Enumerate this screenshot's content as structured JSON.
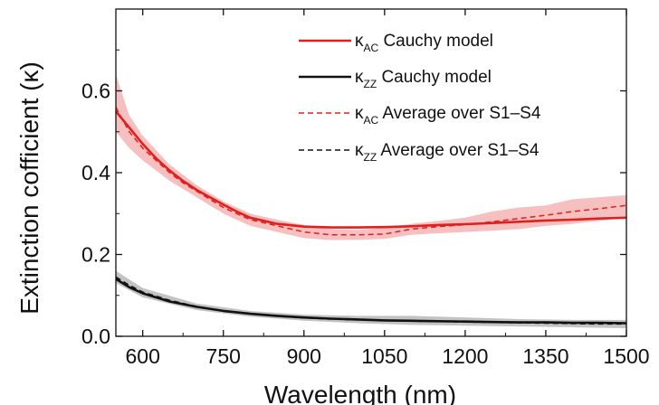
{
  "chart_data": {
    "type": "line",
    "xlabel": "Wavelength (nm)",
    "ylabel": "Extinction cofficient (κ)",
    "xlim": [
      550,
      1500
    ],
    "ylim": [
      0,
      0.8
    ],
    "x_ticks": [
      600,
      750,
      900,
      1050,
      1200,
      1350,
      1500
    ],
    "y_ticks": [
      0.0,
      0.2,
      0.4,
      0.6
    ],
    "x_tick_labels": [
      "600",
      "750",
      "900",
      "1050",
      "1200",
      "1350",
      "1500"
    ],
    "y_tick_labels": [
      "0.0",
      "0.2",
      "0.4",
      "0.6"
    ],
    "grid": false,
    "legend_position": "top-right",
    "colors": {
      "red": "#e0201f",
      "black": "#111111",
      "red_band": "#f4a5a5",
      "black_band": "#aaaaaa"
    },
    "series": [
      {
        "name_symbol": "κ",
        "name_sub": "AC",
        "name_text": " Cauchy model",
        "style": "solid",
        "color": "#e0201f",
        "x": [
          550,
          575,
          600,
          625,
          650,
          675,
          700,
          725,
          750,
          775,
          800,
          850,
          900,
          950,
          1000,
          1050,
          1100,
          1150,
          1200,
          1250,
          1300,
          1350,
          1400,
          1450,
          1500
        ],
        "y": [
          0.55,
          0.51,
          0.47,
          0.435,
          0.405,
          0.38,
          0.358,
          0.34,
          0.322,
          0.305,
          0.29,
          0.275,
          0.268,
          0.266,
          0.266,
          0.267,
          0.269,
          0.272,
          0.274,
          0.277,
          0.28,
          0.283,
          0.285,
          0.288,
          0.29
        ]
      },
      {
        "name_symbol": "κ",
        "name_sub": "ZZ",
        "name_text": " Cauchy model",
        "style": "solid",
        "color": "#111111",
        "x": [
          550,
          575,
          600,
          650,
          700,
          750,
          800,
          850,
          900,
          950,
          1000,
          1050,
          1100,
          1150,
          1200,
          1250,
          1300,
          1350,
          1400,
          1450,
          1500
        ],
        "y": [
          0.14,
          0.12,
          0.105,
          0.085,
          0.072,
          0.062,
          0.055,
          0.05,
          0.046,
          0.043,
          0.041,
          0.039,
          0.038,
          0.037,
          0.036,
          0.035,
          0.034,
          0.034,
          0.033,
          0.033,
          0.032
        ]
      },
      {
        "name_symbol": "κ",
        "name_sub": "AC",
        "name_text": " Average over S1–S4",
        "style": "dashed",
        "color": "#e0201f",
        "x": [
          550,
          575,
          600,
          625,
          650,
          675,
          700,
          725,
          750,
          775,
          800,
          850,
          900,
          950,
          1000,
          1050,
          1100,
          1150,
          1200,
          1250,
          1300,
          1350,
          1400,
          1450,
          1500
        ],
        "y": [
          0.56,
          0.5,
          0.46,
          0.43,
          0.4,
          0.375,
          0.355,
          0.335,
          0.315,
          0.3,
          0.285,
          0.27,
          0.255,
          0.248,
          0.248,
          0.25,
          0.262,
          0.268,
          0.273,
          0.28,
          0.288,
          0.296,
          0.305,
          0.312,
          0.32
        ]
      },
      {
        "name_symbol": "κ",
        "name_sub": "ZZ",
        "name_text": " Average over S1–S4",
        "style": "dashed",
        "color": "#111111",
        "x": [
          550,
          575,
          600,
          650,
          700,
          750,
          800,
          850,
          900,
          950,
          1000,
          1050,
          1100,
          1150,
          1200,
          1250,
          1300,
          1350,
          1400,
          1450,
          1500
        ],
        "y": [
          0.145,
          0.125,
          0.108,
          0.088,
          0.073,
          0.062,
          0.055,
          0.049,
          0.045,
          0.042,
          0.04,
          0.039,
          0.037,
          0.036,
          0.035,
          0.034,
          0.033,
          0.032,
          0.031,
          0.03,
          0.03
        ]
      }
    ],
    "bands": [
      {
        "color": "#f4a5a5",
        "x": [
          550,
          575,
          600,
          650,
          700,
          750,
          800,
          850,
          900,
          950,
          1000,
          1050,
          1100,
          1150,
          1200,
          1250,
          1300,
          1350,
          1400,
          1450,
          1500
        ],
        "upper": [
          0.64,
          0.54,
          0.49,
          0.42,
          0.37,
          0.33,
          0.3,
          0.285,
          0.272,
          0.262,
          0.26,
          0.265,
          0.275,
          0.282,
          0.29,
          0.305,
          0.315,
          0.32,
          0.335,
          0.34,
          0.345
        ],
        "lower": [
          0.5,
          0.46,
          0.43,
          0.38,
          0.34,
          0.3,
          0.27,
          0.255,
          0.24,
          0.235,
          0.236,
          0.238,
          0.248,
          0.252,
          0.255,
          0.258,
          0.262,
          0.27,
          0.275,
          0.282,
          0.29
        ]
      },
      {
        "color": "#aaaaaa",
        "x": [
          550,
          600,
          700,
          800,
          900,
          1000,
          1100,
          1200,
          1300,
          1400,
          1500
        ],
        "upper": [
          0.16,
          0.118,
          0.08,
          0.062,
          0.053,
          0.05,
          0.05,
          0.046,
          0.042,
          0.04,
          0.04
        ],
        "lower": [
          0.13,
          0.095,
          0.064,
          0.048,
          0.038,
          0.032,
          0.028,
          0.026,
          0.024,
          0.022,
          0.02
        ]
      }
    ]
  }
}
